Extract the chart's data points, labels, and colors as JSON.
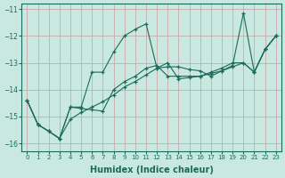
{
  "xlabel": "Humidex (Indice chaleur)",
  "bg_color": "#c8e8e0",
  "grid_color": "#b8d8d0",
  "line_color": "#1a6b5a",
  "xlim": [
    -0.5,
    23.5
  ],
  "ylim": [
    -16.3,
    -10.8
  ],
  "yticks": [
    -16,
    -15,
    -14,
    -13,
    -12,
    -11
  ],
  "xticks": [
    0,
    1,
    2,
    3,
    4,
    5,
    6,
    7,
    8,
    9,
    10,
    11,
    12,
    13,
    14,
    15,
    16,
    17,
    18,
    19,
    20,
    21,
    22,
    23
  ],
  "lines": [
    {
      "x": [
        0,
        1,
        2,
        3,
        4,
        5,
        6,
        7,
        8,
        9,
        10,
        11,
        12,
        13,
        14,
        15,
        16,
        17,
        18,
        19,
        20,
        21,
        22,
        23
      ],
      "y": [
        -14.4,
        -15.3,
        -15.55,
        -15.82,
        -14.65,
        -14.65,
        -13.35,
        -13.35,
        -12.6,
        -12.0,
        -11.75,
        -11.55,
        -13.2,
        -13.15,
        -13.15,
        -13.25,
        -13.3,
        -13.5,
        -13.3,
        -13.1,
        -11.15,
        -13.35,
        -12.5,
        -12.0
      ]
    },
    {
      "x": [
        0,
        1,
        2,
        3,
        4,
        5,
        6,
        7,
        8,
        9,
        10,
        11,
        12,
        13,
        14,
        15,
        16,
        17,
        18,
        19,
        20,
        21,
        22,
        23
      ],
      "y": [
        -14.4,
        -15.3,
        -15.55,
        -15.82,
        -14.65,
        -14.7,
        -14.75,
        -14.8,
        -14.0,
        -13.7,
        -13.5,
        -13.2,
        -13.1,
        -13.5,
        -13.5,
        -13.5,
        -13.5,
        -13.35,
        -13.2,
        -13.0,
        -13.0,
        -13.35,
        -12.5,
        -12.0
      ]
    },
    {
      "x": [
        0,
        1,
        2,
        3,
        4,
        5,
        6,
        7,
        8,
        9,
        10,
        11,
        12,
        13,
        14,
        15,
        16,
        17,
        18,
        19,
        20,
        21,
        22,
        23
      ],
      "y": [
        -14.4,
        -15.3,
        -15.55,
        -15.82,
        -15.1,
        -14.85,
        -14.65,
        -14.45,
        -14.2,
        -13.9,
        -13.7,
        -13.45,
        -13.2,
        -13.0,
        -13.6,
        -13.55,
        -13.5,
        -13.4,
        -13.3,
        -13.15,
        -13.0,
        -13.35,
        -12.5,
        -12.0
      ]
    }
  ]
}
